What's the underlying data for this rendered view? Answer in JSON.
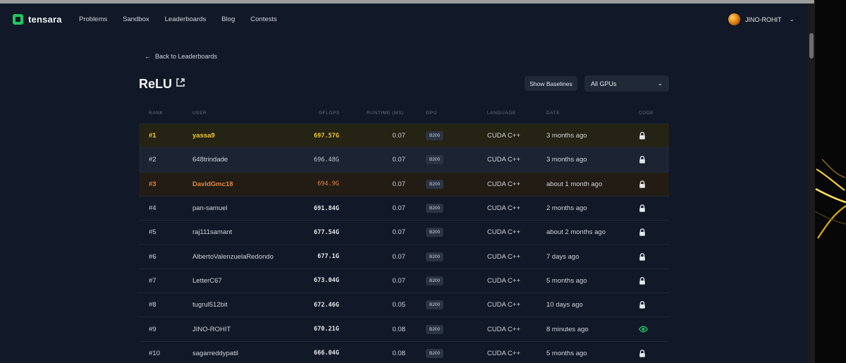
{
  "nav": {
    "brand": "tensara",
    "links": [
      "Problems",
      "Sandbox",
      "Leaderboards",
      "Blog",
      "Contests"
    ],
    "user": "JINO-ROHIT"
  },
  "page": {
    "back_label": "Back to Leaderboards",
    "title": "ReLU",
    "show_baselines_label": "Show Baselines",
    "gpu_filter": "All GPUs"
  },
  "table": {
    "headers": [
      "RANK",
      "USER",
      "GFLOPS",
      "RUNTIME (MS)",
      "GPU",
      "LANGUAGE",
      "DATE",
      "CODE"
    ],
    "rows": [
      {
        "rank": "#1",
        "user": "yassa9",
        "gflops": "697.57G",
        "runtime": "0.07",
        "gpu": "B200",
        "language": "CUDA C++",
        "date": "3 months ago",
        "code": "lock-icon"
      },
      {
        "rank": "#2",
        "user": "648trindade",
        "gflops": "696.48G",
        "runtime": "0.07",
        "gpu": "B200",
        "language": "CUDA C++",
        "date": "3 months ago",
        "code": "lock-icon"
      },
      {
        "rank": "#3",
        "user": "DavidGmc18",
        "gflops": "694.9G",
        "runtime": "0.07",
        "gpu": "B200",
        "language": "CUDA C++",
        "date": "about 1 month ago",
        "code": "lock-icon"
      },
      {
        "rank": "#4",
        "user": "pan-samuel",
        "gflops": "691.84G",
        "runtime": "0.07",
        "gpu": "B200",
        "language": "CUDA C++",
        "date": "2 months ago",
        "code": "lock-icon"
      },
      {
        "rank": "#5",
        "user": "raj111samant",
        "gflops": "677.54G",
        "runtime": "0.07",
        "gpu": "B200",
        "language": "CUDA C++",
        "date": "about 2 months ago",
        "code": "lock-icon"
      },
      {
        "rank": "#6",
        "user": "AlbertoValenzuelaRedondo",
        "gflops": "677.1G",
        "runtime": "0.07",
        "gpu": "B200",
        "language": "CUDA C++",
        "date": "7 days ago",
        "code": "lock-icon"
      },
      {
        "rank": "#7",
        "user": "LetterC67",
        "gflops": "673.04G",
        "runtime": "0.07",
        "gpu": "B200",
        "language": "CUDA C++",
        "date": "5 months ago",
        "code": "lock-icon"
      },
      {
        "rank": "#8",
        "user": "tugrul512bit",
        "gflops": "672.46G",
        "runtime": "0.05",
        "gpu": "B200",
        "language": "CUDA C++",
        "date": "10 days ago",
        "code": "lock-icon"
      },
      {
        "rank": "#9",
        "user": "JINO-ROHIT",
        "gflops": "670.21G",
        "runtime": "0.08",
        "gpu": "B200",
        "language": "CUDA C++",
        "date": "8 minutes ago",
        "code": "eye-icon"
      },
      {
        "rank": "#10",
        "user": "sagarreddypatil",
        "gflops": "666.04G",
        "runtime": "0.08",
        "gpu": "B200",
        "language": "CUDA C++",
        "date": "5 months ago",
        "code": "lock-icon"
      }
    ]
  },
  "colors": {
    "background": "#111827",
    "gold": "#f2c936",
    "bronze": "#e6853f",
    "accent_green": "#22c55e"
  }
}
